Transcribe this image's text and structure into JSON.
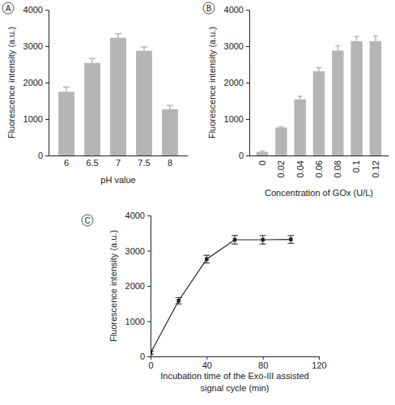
{
  "chart_data": [
    {
      "type": "bar",
      "title": "A",
      "xlabel": "pH value",
      "ylabel": "Fluorescence intensity (a.u.)",
      "categories": [
        "6",
        "6.5",
        "7",
        "7.5",
        "8"
      ],
      "values": [
        1750,
        2540,
        3230,
        2870,
        1270
      ],
      "errors": [
        130,
        120,
        110,
        110,
        100
      ],
      "color": "#b5b5b5",
      "ylim": [
        0,
        4000
      ],
      "yticks": [
        0,
        1000,
        2000,
        3000,
        4000
      ]
    },
    {
      "type": "bar",
      "title": "B",
      "xlabel": "Concentration of GOx (U/L)",
      "ylabel": "Fluorescence intensity (a.u.)",
      "categories": [
        "0",
        "0.02",
        "0.04",
        "0.06",
        "0.08",
        "0.1",
        "0.12"
      ],
      "values": [
        100,
        770,
        1540,
        2310,
        2880,
        3140,
        3140
      ],
      "errors": [
        20,
        20,
        90,
        100,
        130,
        130,
        140
      ],
      "color": "#b5b5b5",
      "ylim": [
        0,
        4000
      ],
      "yticks": [
        0,
        1000,
        2000,
        3000,
        4000
      ]
    },
    {
      "type": "line",
      "title": "C",
      "xlabel": "Incubation time of the Exo-III assisted signal cycle (min)",
      "ylabel": "Fluorescence intensity (a.u.)",
      "x": [
        0,
        20,
        40,
        60,
        80,
        100
      ],
      "values": [
        100,
        1580,
        2760,
        3310,
        3310,
        3320
      ],
      "errors": [
        50,
        90,
        110,
        120,
        120,
        110
      ],
      "color": "#222222",
      "marker": "square",
      "xlim": [
        0,
        120
      ],
      "xticks": [
        0,
        40,
        80,
        120
      ],
      "ylim": [
        0,
        4000
      ],
      "yticks": [
        0,
        1000,
        2000,
        3000,
        4000
      ]
    }
  ]
}
